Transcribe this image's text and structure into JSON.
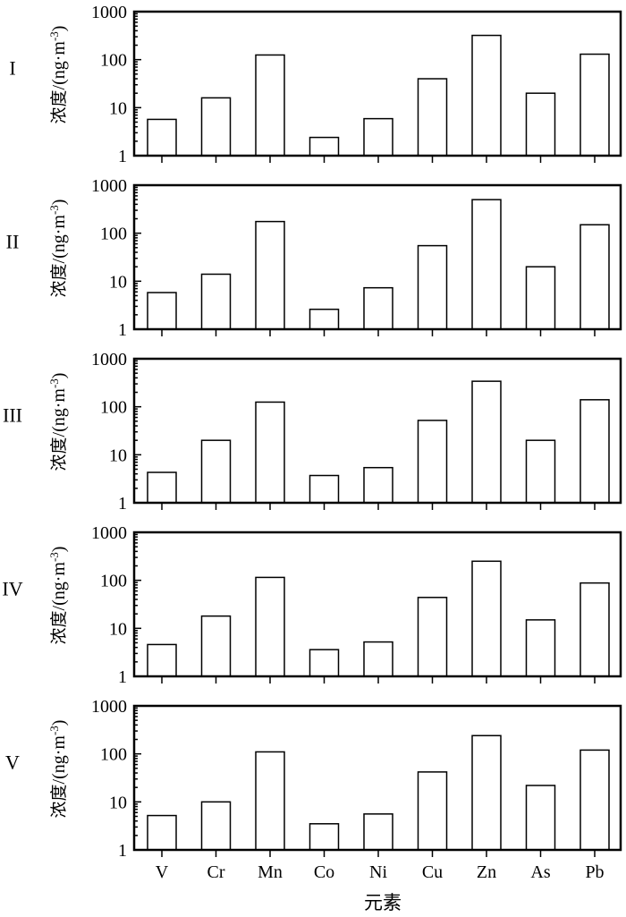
{
  "chart_data": {
    "type": "bar",
    "yscale": "log",
    "ylim": [
      1,
      1000
    ],
    "yticks": [
      "1",
      "10",
      "100",
      "1000"
    ],
    "ylabel_cn": "浓度",
    "ylabel_unit": "/(ng·m",
    "ylabel_sup": "-3",
    "ylabel_close": ")",
    "xlabel": "元素",
    "categories": [
      "V",
      "Cr",
      "Mn",
      "Co",
      "Ni",
      "Cu",
      "Zn",
      "As",
      "Pb"
    ],
    "panels": [
      {
        "label": "I",
        "values": [
          5.7,
          16,
          125,
          2.4,
          5.9,
          40,
          320,
          20,
          130
        ]
      },
      {
        "label": "II",
        "values": [
          5.8,
          14,
          175,
          2.6,
          7.3,
          55,
          500,
          20,
          150
        ]
      },
      {
        "label": "III",
        "values": [
          4.3,
          20,
          125,
          3.7,
          5.4,
          52,
          340,
          20,
          140
        ]
      },
      {
        "label": "IV",
        "values": [
          4.6,
          18,
          115,
          3.6,
          5.2,
          44,
          250,
          15,
          88
        ]
      },
      {
        "label": "V",
        "values": [
          5.2,
          10,
          110,
          3.5,
          5.6,
          42,
          240,
          22,
          120
        ]
      }
    ]
  }
}
